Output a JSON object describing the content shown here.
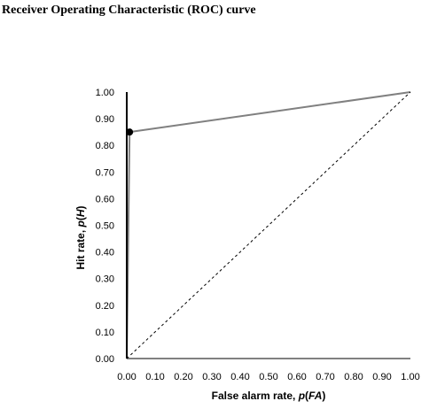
{
  "chart_data": {
    "type": "line",
    "title": "Receiver Operating Characteristic (ROC) curve",
    "xlabel_parts": [
      {
        "text": "False alarm rate, ",
        "italic": false
      },
      {
        "text": "p",
        "italic": true
      },
      {
        "text": "(",
        "italic": false
      },
      {
        "text": "FA",
        "italic": true
      },
      {
        "text": ")",
        "italic": false
      }
    ],
    "ylabel_parts": [
      {
        "text": "Hit rate, ",
        "italic": false
      },
      {
        "text": "p",
        "italic": true
      },
      {
        "text": "(",
        "italic": false
      },
      {
        "text": "H",
        "italic": true
      },
      {
        "text": ")",
        "italic": false
      }
    ],
    "xlim": [
      0,
      1
    ],
    "ylim": [
      0,
      1
    ],
    "xticks": [
      "0.00",
      "0.10",
      "0.20",
      "0.30",
      "0.40",
      "0.50",
      "0.60",
      "0.70",
      "0.80",
      "0.90",
      "1.00"
    ],
    "yticks": [
      "0.00",
      "0.10",
      "0.20",
      "0.30",
      "0.40",
      "0.50",
      "0.60",
      "0.70",
      "0.80",
      "0.90",
      "1.00"
    ],
    "grid": false,
    "series": [
      {
        "style": "solid",
        "color": "#808080",
        "x": [
          0.0,
          0.01,
          1.0
        ],
        "y": [
          0.0,
          0.85,
          1.0
        ]
      },
      {
        "style": "dashed",
        "color": "#000000",
        "x": [
          0.0,
          1.0
        ],
        "y": [
          0.0,
          1.0
        ]
      }
    ],
    "points": [
      {
        "x": 0.01,
        "y": 0.85,
        "color": "#000000"
      }
    ]
  }
}
